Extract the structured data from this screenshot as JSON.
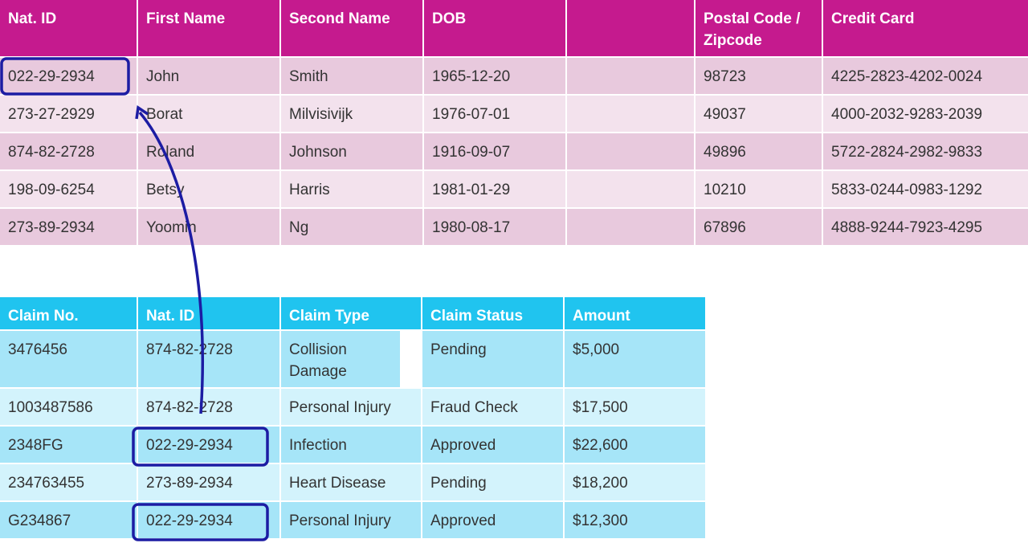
{
  "tables": [
    {
      "header": [
        "Nat. ID",
        "First Name",
        "Second Name",
        "DOB",
        "Postal Code / Zipcode",
        "Credit Card"
      ],
      "rows": [
        [
          "022-29-2934",
          "John",
          "Smith",
          "1965-12-20",
          "98723",
          "4225-2823-4202-0024"
        ],
        [
          "273-27-2929",
          "Borat",
          "Milvisivijk",
          "1976-07-01",
          "49037",
          "4000-2032-9283-2039"
        ],
        [
          "874-82-2728",
          "Roland",
          "Johnson",
          "1916-09-07",
          "49896",
          "5722-2824-2982-9833"
        ],
        [
          "198-09-6254",
          "Betsy",
          "Harris",
          "1981-01-29",
          "10210",
          "5833-0244-0983-1292"
        ],
        [
          "273-89-2934",
          "Yoomin",
          "Ng",
          "1980-08-17",
          "67896",
          "4888-9244-7923-4295"
        ]
      ]
    },
    {
      "header": [
        "Claim No.",
        "Nat. ID",
        "Claim Type",
        "Claim Status",
        "Amount"
      ],
      "rows": [
        [
          "3476456",
          "874-82-2728",
          "Collision Damage",
          "Pending",
          "$5,000"
        ],
        [
          "1003487586",
          "874-82-2728",
          "Personal Injury",
          "Fraud Check",
          "$17,500"
        ],
        [
          "2348FG",
          "022-29-2934",
          "Infection",
          "Approved",
          "$22,600"
        ],
        [
          "234763455",
          "273-89-2934",
          "Heart Disease",
          "Pending",
          "$18,200"
        ],
        [
          "G234867",
          "022-29-2934",
          "Personal Injury",
          "Approved",
          "$12,300"
        ]
      ]
    }
  ]
}
